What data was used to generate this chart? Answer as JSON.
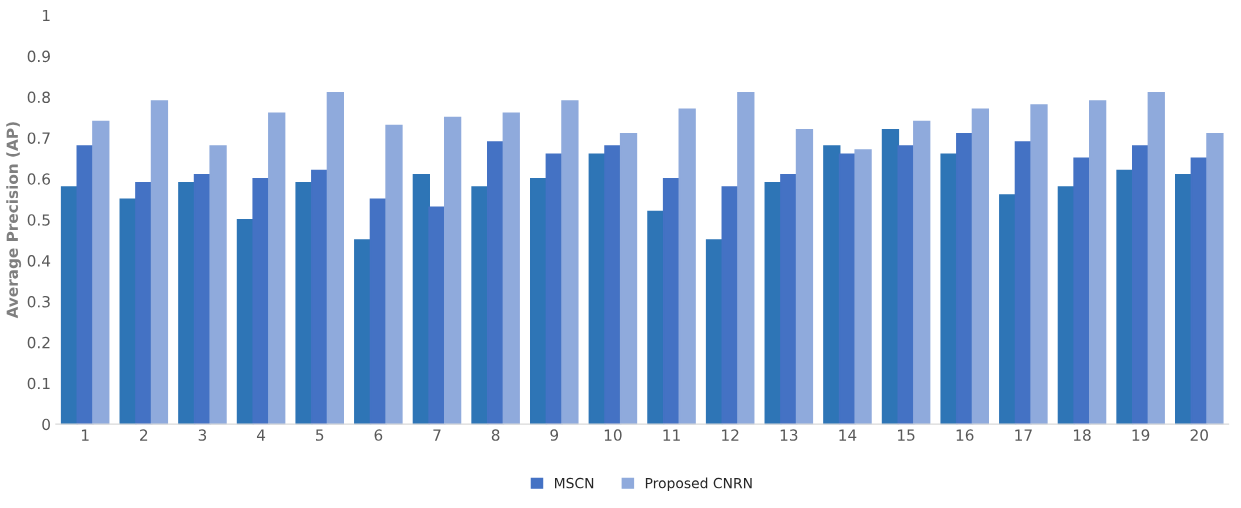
{
  "chart_data": {
    "type": "bar",
    "ylabel": "Average Precision (AP)",
    "categories": [
      "1",
      "2",
      "3",
      "4",
      "5",
      "6",
      "7",
      "8",
      "9",
      "10",
      "11",
      "12",
      "13",
      "14",
      "15",
      "16",
      "17",
      "18",
      "19",
      "20"
    ],
    "series": [
      {
        "color": "#2e75b6",
        "values": [
          0.58,
          0.55,
          0.59,
          0.5,
          0.59,
          0.45,
          0.61,
          0.58,
          0.6,
          0.66,
          0.52,
          0.45,
          0.59,
          0.68,
          0.72,
          0.66,
          0.56,
          0.58,
          0.62,
          0.61
        ]
      },
      {
        "name": "MSCN",
        "color": "#4472c4",
        "values": [
          0.68,
          0.59,
          0.61,
          0.6,
          0.62,
          0.55,
          0.53,
          0.69,
          0.66,
          0.68,
          0.6,
          0.58,
          0.61,
          0.66,
          0.68,
          0.71,
          0.69,
          0.65,
          0.68,
          0.65
        ]
      },
      {
        "name": "Proposed CNRN",
        "color": "#8faadc",
        "values": [
          0.74,
          0.79,
          0.68,
          0.76,
          0.81,
          0.73,
          0.75,
          0.76,
          0.79,
          0.71,
          0.77,
          0.81,
          0.72,
          0.67,
          0.74,
          0.77,
          0.78,
          0.79,
          0.81,
          0.71
        ]
      }
    ],
    "ylim": [
      0,
      1
    ],
    "yticks": [
      0,
      0.1,
      0.2,
      0.3,
      0.4,
      0.5,
      0.6,
      0.7,
      0.8,
      0.9,
      1
    ],
    "grid": false,
    "legend": "bottom"
  }
}
